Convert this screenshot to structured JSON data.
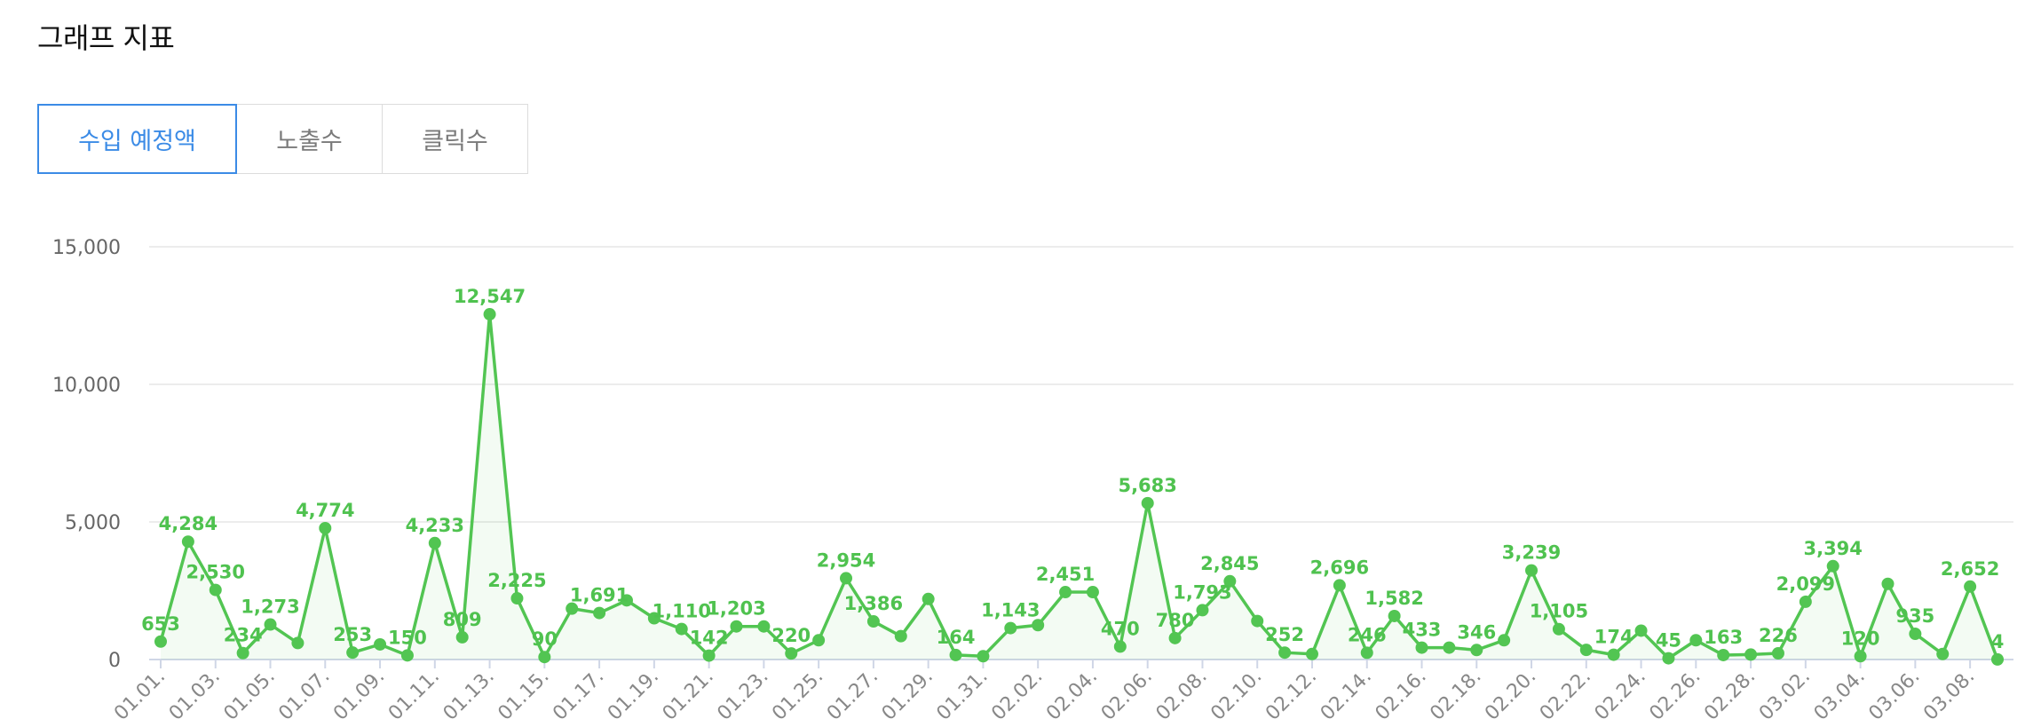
{
  "header": {
    "title": "그래프 지표"
  },
  "tabs": [
    {
      "label": "수입 예정액",
      "active": true
    },
    {
      "label": "노출수",
      "active": false
    },
    {
      "label": "클릭수",
      "active": false
    }
  ],
  "colors": {
    "series": "#52c552",
    "tab_active": "#3b8be6",
    "grid": "#e6e6e6"
  },
  "chart_data": {
    "type": "line",
    "ylim": [
      0,
      15000
    ],
    "yticks": [
      "0",
      "5,000",
      "10,000",
      "15,000"
    ],
    "grid": true,
    "x": [
      "01.01.",
      "01.02.",
      "01.03.",
      "01.04.",
      "01.05.",
      "01.06.",
      "01.07.",
      "01.08.",
      "01.09.",
      "01.10.",
      "01.11.",
      "01.12.",
      "01.13.",
      "01.14.",
      "01.15.",
      "01.16.",
      "01.17.",
      "01.18.",
      "01.19.",
      "01.20.",
      "01.21.",
      "01.22.",
      "01.23.",
      "01.24.",
      "01.25.",
      "01.26.",
      "01.27.",
      "01.28.",
      "01.29.",
      "01.30.",
      "01.31.",
      "02.01.",
      "02.02.",
      "02.03.",
      "02.04.",
      "02.05.",
      "02.06.",
      "02.07.",
      "02.08.",
      "02.09.",
      "02.10.",
      "02.11.",
      "02.12.",
      "02.13.",
      "02.14.",
      "02.15.",
      "02.16.",
      "02.17.",
      "02.18.",
      "02.19.",
      "02.20.",
      "02.21.",
      "02.22.",
      "02.23.",
      "02.24.",
      "02.25.",
      "02.26.",
      "02.27.",
      "02.28.",
      "03.01.",
      "03.02.",
      "03.03.",
      "03.04.",
      "03.05.",
      "03.06.",
      "03.07.",
      "03.08.",
      "03.09."
    ],
    "xtick_labels": [
      "01.01.",
      "01.03.",
      "01.05.",
      "01.07.",
      "01.09.",
      "01.11.",
      "01.13.",
      "01.15.",
      "01.17.",
      "01.19.",
      "01.21.",
      "01.23.",
      "01.25.",
      "01.27.",
      "01.29.",
      "01.31.",
      "02.02.",
      "02.04.",
      "02.06.",
      "02.08.",
      "02.10.",
      "02.12.",
      "02.14.",
      "02.16.",
      "02.18.",
      "02.20.",
      "02.22.",
      "02.24.",
      "02.26.",
      "02.28.",
      "03.02.",
      "03.04.",
      "03.06.",
      "03.08."
    ],
    "series": [
      {
        "values": [
          653,
          4284,
          2530,
          234,
          1273,
          600,
          4774,
          253,
          550,
          150,
          4233,
          809,
          12547,
          2225,
          90,
          1850,
          1691,
          2150,
          1500,
          1110,
          142,
          1203,
          1203,
          220,
          700,
          2954,
          1386,
          850,
          2200,
          164,
          120,
          1143,
          1250,
          2451,
          2451,
          470,
          5683,
          780,
          1793,
          2845,
          1400,
          252,
          200,
          2696,
          246,
          1582,
          433,
          433,
          346,
          700,
          3239,
          1105,
          350,
          174,
          1050,
          45,
          700,
          163,
          180,
          226,
          2099,
          3394,
          120,
          2750,
          935,
          200,
          2652,
          4
        ]
      }
    ],
    "labels": [
      {
        "i": 0,
        "text": "653"
      },
      {
        "i": 1,
        "text": "4,284"
      },
      {
        "i": 2,
        "text": "2,530"
      },
      {
        "i": 3,
        "text": "234"
      },
      {
        "i": 4,
        "text": "1,273"
      },
      {
        "i": 6,
        "text": "4,774"
      },
      {
        "i": 7,
        "text": "253"
      },
      {
        "i": 9,
        "text": "150"
      },
      {
        "i": 10,
        "text": "4,233"
      },
      {
        "i": 11,
        "text": "809"
      },
      {
        "i": 12,
        "text": "12,547"
      },
      {
        "i": 13,
        "text": "2,225"
      },
      {
        "i": 14,
        "text": "90"
      },
      {
        "i": 16,
        "text": "1,691"
      },
      {
        "i": 19,
        "text": "1,110"
      },
      {
        "i": 20,
        "text": "142"
      },
      {
        "i": 21,
        "text": "1,203"
      },
      {
        "i": 23,
        "text": "220"
      },
      {
        "i": 25,
        "text": "2,954"
      },
      {
        "i": 26,
        "text": "1,386"
      },
      {
        "i": 29,
        "text": "164"
      },
      {
        "i": 31,
        "text": "1,143"
      },
      {
        "i": 33,
        "text": "2,451"
      },
      {
        "i": 35,
        "text": "470"
      },
      {
        "i": 36,
        "text": "5,683"
      },
      {
        "i": 37,
        "text": "780"
      },
      {
        "i": 38,
        "text": "1,793"
      },
      {
        "i": 39,
        "text": "2,845"
      },
      {
        "i": 41,
        "text": "252"
      },
      {
        "i": 43,
        "text": "2,696"
      },
      {
        "i": 44,
        "text": "246"
      },
      {
        "i": 45,
        "text": "1,582"
      },
      {
        "i": 46,
        "text": "433"
      },
      {
        "i": 48,
        "text": "346"
      },
      {
        "i": 50,
        "text": "3,239"
      },
      {
        "i": 51,
        "text": "1,105"
      },
      {
        "i": 53,
        "text": "174"
      },
      {
        "i": 55,
        "text": "45"
      },
      {
        "i": 57,
        "text": "163"
      },
      {
        "i": 59,
        "text": "226"
      },
      {
        "i": 60,
        "text": "2,099"
      },
      {
        "i": 61,
        "text": "3,394"
      },
      {
        "i": 62,
        "text": "120"
      },
      {
        "i": 64,
        "text": "935"
      },
      {
        "i": 66,
        "text": "2,652"
      },
      {
        "i": 67,
        "text": "4"
      }
    ]
  }
}
